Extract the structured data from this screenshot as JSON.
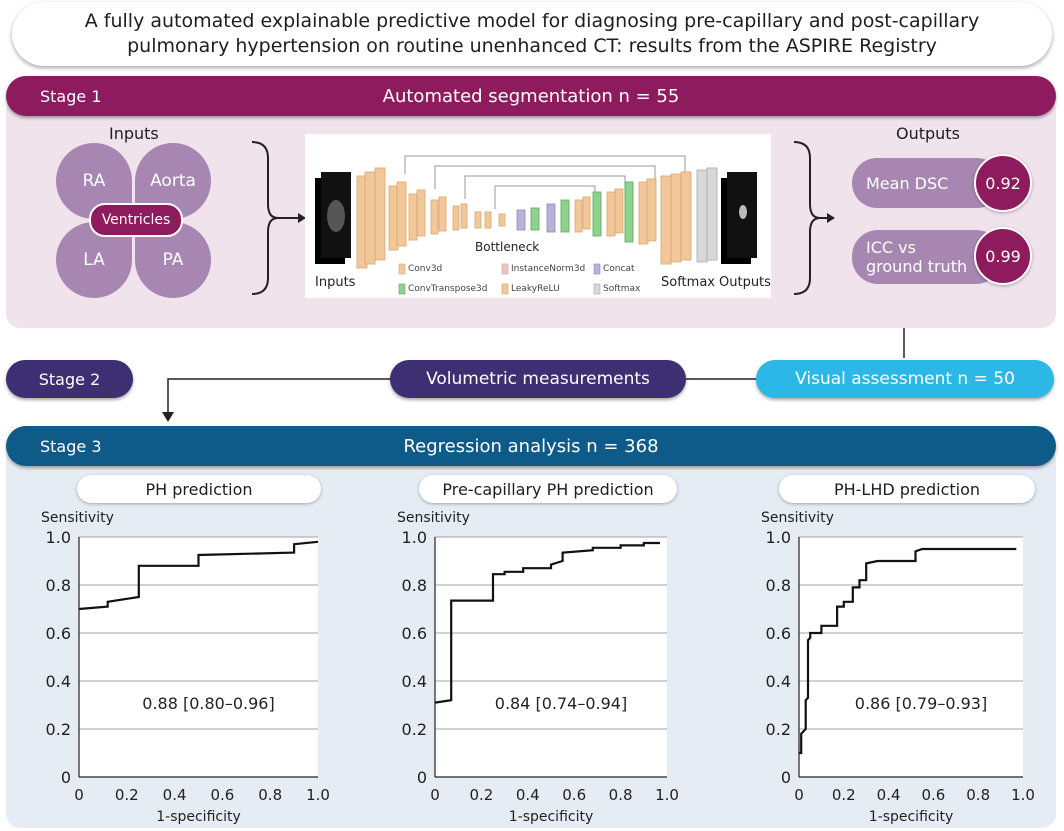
{
  "title": {
    "line1": "A fully automated explainable predictive model for diagnosing pre-capillary and post-capillary",
    "line2": "pulmonary hypertension on routine unenhanced CT: results from the ASPIRE Registry"
  },
  "stage1": {
    "label": "Stage 1",
    "heading": "Automated segmentation n = 55",
    "inputs_label": "Inputs",
    "outputs_label": "Outputs",
    "chambers": [
      "RA",
      "Aorta",
      "LA",
      "PA"
    ],
    "center_chamber": "Ventricles",
    "network": {
      "inputs_label": "Inputs",
      "bottleneck_label": "Bottleneck",
      "softmax_label": "Softmax",
      "outputs_label": "Outputs",
      "legend": [
        "Conv3d",
        "InstanceNorm3d",
        "Concat",
        "ConvTranspose3d",
        "LeakyReLU",
        "Softmax"
      ]
    },
    "metrics": [
      {
        "label_line1": "Mean DSC",
        "label_line2": "",
        "value": "0.92"
      },
      {
        "label_line1": "ICC vs",
        "label_line2": "ground truth",
        "value": "0.99"
      }
    ]
  },
  "stage2": {
    "label": "Stage 2",
    "volumetric": "Volumetric measurements",
    "visual": "Visual assessment n = 50"
  },
  "stage3": {
    "label": "Stage 3",
    "heading": "Regression analysis n = 368"
  },
  "colors": {
    "stage1": "#8e1b5e",
    "stage2": "#3e2f73",
    "stage3": "#0e5b8a",
    "visual": "#2bb8e6",
    "petal": "#a787b2"
  },
  "chart_data": [
    {
      "type": "line",
      "title": "PH prediction",
      "xlabel": "1-specificity",
      "ylabel": "Sensitivity",
      "xlim": [
        0,
        1.0
      ],
      "ylim": [
        0,
        1.0
      ],
      "xticks": [
        "0",
        "0.2",
        "0.4",
        "0.6",
        "0.8",
        "1.0"
      ],
      "yticks": [
        "0",
        "0.2",
        "0.4",
        "0.6",
        "0.8",
        "1.0"
      ],
      "annotation": "0.88 [0.80–0.96]",
      "x": [
        0,
        0.12,
        0.12,
        0.25,
        0.25,
        0.5,
        0.5,
        0.9,
        0.9,
        1.0
      ],
      "y": [
        0.7,
        0.71,
        0.73,
        0.75,
        0.88,
        0.88,
        0.925,
        0.935,
        0.97,
        0.98
      ]
    },
    {
      "type": "line",
      "title": "Pre-capillary PH prediction",
      "xlabel": "1-specificity",
      "ylabel": "Sensitivity",
      "xlim": [
        0,
        1.0
      ],
      "ylim": [
        0,
        1.0
      ],
      "xticks": [
        "0",
        "0.2",
        "0.4",
        "0.6",
        "0.8",
        "1.0"
      ],
      "yticks": [
        "0",
        "0.2",
        "0.4",
        "0.6",
        "0.8",
        "1.0"
      ],
      "annotation": "0.84 [0.74–0.94]",
      "x": [
        0,
        0.07,
        0.07,
        0.25,
        0.25,
        0.3,
        0.3,
        0.38,
        0.38,
        0.5,
        0.5,
        0.55,
        0.55,
        0.68,
        0.68,
        0.8,
        0.8,
        0.9,
        0.9,
        0.97
      ],
      "y": [
        0.31,
        0.32,
        0.735,
        0.735,
        0.845,
        0.845,
        0.855,
        0.855,
        0.87,
        0.87,
        0.885,
        0.9,
        0.935,
        0.945,
        0.955,
        0.955,
        0.965,
        0.965,
        0.975,
        0.975
      ]
    },
    {
      "type": "line",
      "title": "PH-LHD prediction",
      "xlabel": "1-specificity",
      "ylabel": "Sensitivity",
      "xlim": [
        0,
        1.0
      ],
      "ylim": [
        0,
        1.0
      ],
      "xticks": [
        "0",
        "0.2",
        "0.4",
        "0.6",
        "0.8",
        "1.0"
      ],
      "yticks": [
        "0",
        "0.2",
        "0.4",
        "0.6",
        "0.8",
        "1.0"
      ],
      "annotation": "0.86 [0.79–0.93]",
      "x": [
        0,
        0.01,
        0.01,
        0.03,
        0.03,
        0.04,
        0.04,
        0.05,
        0.05,
        0.1,
        0.1,
        0.17,
        0.17,
        0.2,
        0.2,
        0.24,
        0.24,
        0.27,
        0.27,
        0.3,
        0.3,
        0.35,
        0.35,
        0.52,
        0.52,
        0.55,
        0.55,
        0.97
      ],
      "y": [
        0.1,
        0.1,
        0.18,
        0.2,
        0.32,
        0.33,
        0.57,
        0.58,
        0.6,
        0.6,
        0.63,
        0.63,
        0.71,
        0.71,
        0.73,
        0.73,
        0.79,
        0.79,
        0.82,
        0.82,
        0.89,
        0.9,
        0.9,
        0.9,
        0.94,
        0.95,
        0.95,
        0.95
      ]
    }
  ]
}
